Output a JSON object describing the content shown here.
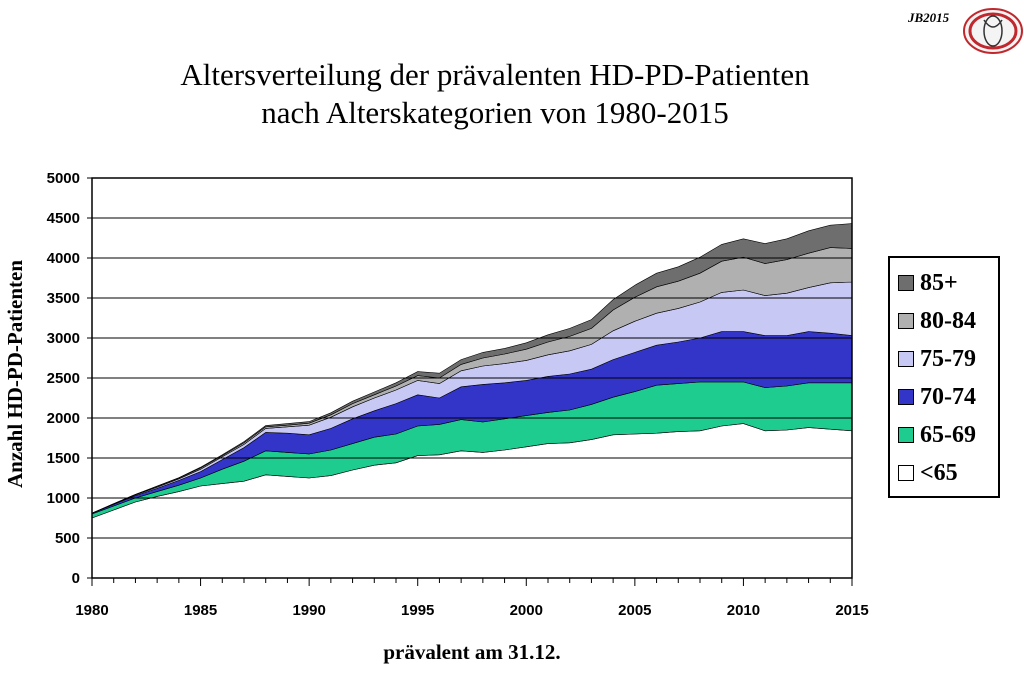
{
  "badge": {
    "text": "JB2015"
  },
  "title": {
    "line1": "Altersverteilung der prävalenten HD-PD-Patienten",
    "line2": "nach Alterskategorien von 1980-2015"
  },
  "chart_data": {
    "type": "area",
    "stacked": true,
    "xlabel": "prävalent am 31.12.",
    "ylabel": "Anzahl HD-PD-Patienten",
    "xlim": [
      1980,
      2015
    ],
    "ylim": [
      0,
      5000
    ],
    "x_ticks": [
      "1980",
      "1985",
      "1990",
      "1995",
      "2000",
      "2005",
      "2010",
      "2015"
    ],
    "y_ticks": [
      "0",
      "500",
      "1000",
      "1500",
      "2000",
      "2500",
      "3000",
      "3500",
      "4000",
      "4500",
      "5000"
    ],
    "legend_position": "right",
    "x": [
      1980,
      1981,
      1982,
      1983,
      1984,
      1985,
      1986,
      1987,
      1988,
      1989,
      1990,
      1991,
      1992,
      1993,
      1994,
      1995,
      1996,
      1997,
      1998,
      1999,
      2000,
      2001,
      2002,
      2003,
      2004,
      2005,
      2006,
      2007,
      2008,
      2009,
      2010,
      2011,
      2012,
      2013,
      2014,
      2015
    ],
    "series": [
      {
        "name": "<65",
        "color": "#ffffff",
        "values": [
          750,
          850,
          950,
          1020,
          1080,
          1150,
          1180,
          1210,
          1290,
          1270,
          1250,
          1280,
          1350,
          1410,
          1440,
          1530,
          1540,
          1590,
          1570,
          1600,
          1640,
          1680,
          1690,
          1730,
          1790,
          1800,
          1810,
          1830,
          1840,
          1900,
          1930,
          1840,
          1850,
          1880,
          1860,
          1840
        ]
      },
      {
        "name": "65-69",
        "color": "#1fcc8f",
        "values": [
          50,
          50,
          50,
          60,
          80,
          100,
          180,
          250,
          300,
          300,
          300,
          320,
          330,
          350,
          360,
          370,
          380,
          390,
          380,
          390,
          390,
          390,
          410,
          440,
          470,
          530,
          600,
          600,
          610,
          550,
          520,
          540,
          550,
          560,
          580,
          600
        ]
      },
      {
        "name": "70-74",
        "color": "#3334c8",
        "values": [
          10,
          20,
          30,
          40,
          60,
          80,
          120,
          170,
          230,
          240,
          240,
          270,
          310,
          330,
          380,
          390,
          330,
          410,
          470,
          450,
          440,
          450,
          450,
          440,
          470,
          490,
          500,
          520,
          550,
          630,
          630,
          650,
          630,
          640,
          620,
          590
        ]
      },
      {
        "name": "75-79",
        "color": "#c8c8f4",
        "values": [
          0,
          5,
          10,
          15,
          20,
          30,
          35,
          40,
          50,
          80,
          120,
          140,
          150,
          160,
          170,
          180,
          180,
          200,
          230,
          240,
          250,
          270,
          290,
          310,
          360,
          390,
          400,
          420,
          450,
          490,
          520,
          500,
          530,
          550,
          630,
          670
        ]
      },
      {
        "name": "80-84",
        "color": "#b0b0b0",
        "values": [
          0,
          5,
          5,
          10,
          10,
          15,
          15,
          20,
          20,
          20,
          25,
          30,
          40,
          40,
          50,
          60,
          70,
          80,
          100,
          120,
          140,
          160,
          180,
          200,
          260,
          300,
          330,
          340,
          360,
          390,
          410,
          400,
          420,
          430,
          440,
          420
        ]
      },
      {
        "name": "85+",
        "color": "#6e6e6e",
        "values": [
          0,
          0,
          0,
          5,
          5,
          10,
          10,
          15,
          15,
          20,
          20,
          25,
          30,
          35,
          40,
          50,
          60,
          60,
          70,
          70,
          80,
          90,
          100,
          110,
          130,
          150,
          170,
          180,
          200,
          210,
          230,
          250,
          260,
          280,
          280,
          310
        ]
      }
    ]
  }
}
